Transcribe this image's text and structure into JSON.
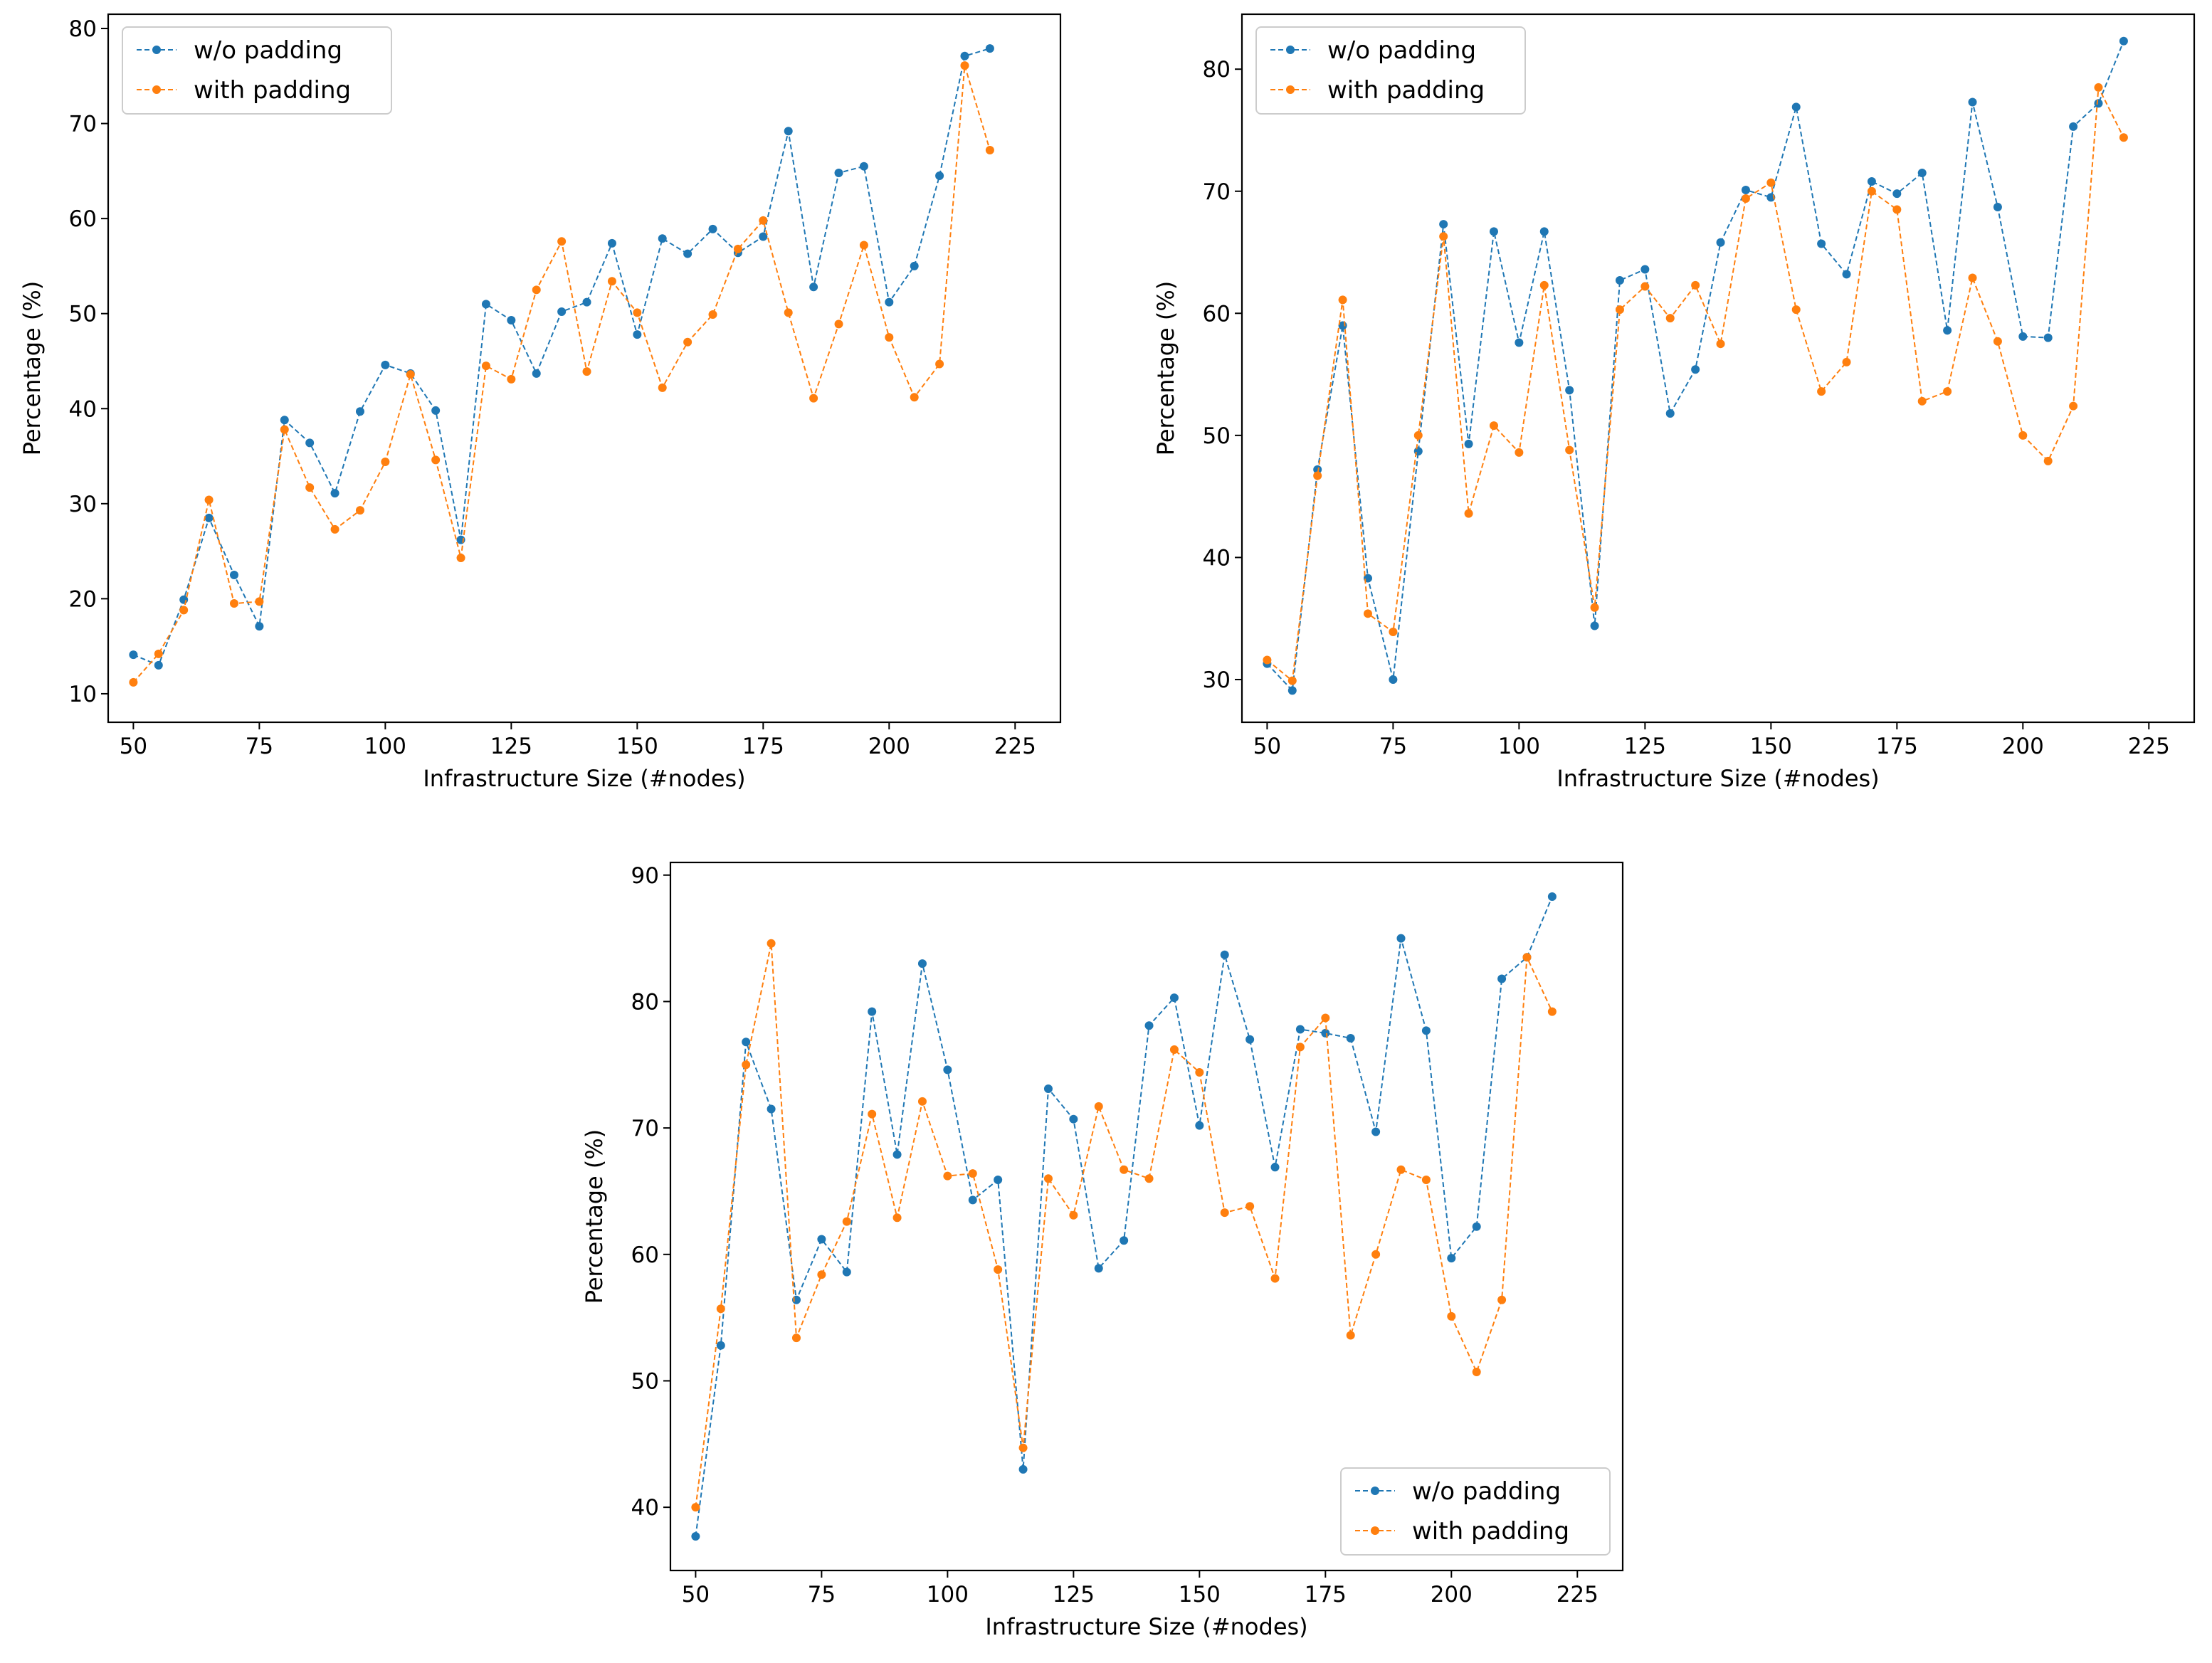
{
  "colors": {
    "series_blue": "#1f77b4",
    "series_orange": "#ff7f0e"
  },
  "chart_data": [
    {
      "type": "line",
      "xlabel": "Infrastructure Size (#nodes)",
      "ylabel": "Percentage (%)",
      "xlim": [
        45,
        234
      ],
      "ylim": [
        7,
        81.5
      ],
      "xticks": [
        50,
        75,
        100,
        125,
        150,
        175,
        200,
        225
      ],
      "yticks": [
        10,
        20,
        30,
        40,
        50,
        60,
        70,
        80
      ],
      "legend_position": "upper-left",
      "x": [
        50,
        55,
        60,
        65,
        70,
        75,
        80,
        85,
        90,
        95,
        100,
        105,
        110,
        115,
        120,
        125,
        130,
        135,
        140,
        145,
        150,
        155,
        160,
        165,
        170,
        175,
        180,
        185,
        190,
        195,
        200,
        205,
        210,
        215,
        220
      ],
      "series": [
        {
          "name": "w/o padding",
          "color": "#1f77b4",
          "values": [
            14.1,
            13.0,
            19.9,
            28.5,
            22.5,
            17.1,
            38.8,
            36.4,
            31.1,
            39.7,
            44.6,
            43.7,
            39.8,
            26.2,
            51.0,
            49.3,
            43.7,
            50.2,
            51.2,
            57.4,
            47.8,
            57.9,
            56.3,
            58.9,
            56.4,
            58.1,
            69.2,
            52.8,
            64.8,
            65.5,
            51.2,
            55.0,
            64.5,
            77.1,
            77.9
          ]
        },
        {
          "name": "with padding",
          "color": "#ff7f0e",
          "values": [
            11.2,
            14.2,
            18.8,
            30.4,
            19.5,
            19.7,
            37.8,
            31.7,
            27.3,
            29.3,
            34.4,
            43.6,
            34.6,
            24.3,
            44.5,
            43.1,
            52.5,
            57.6,
            43.9,
            53.4,
            50.1,
            42.2,
            47.0,
            49.9,
            56.8,
            59.8,
            50.1,
            41.1,
            48.9,
            57.2,
            47.5,
            41.2,
            44.7,
            76.1,
            67.2
          ]
        }
      ]
    },
    {
      "type": "line",
      "xlabel": "Infrastructure Size (#nodes)",
      "ylabel": "Percentage (%)",
      "xlim": [
        45,
        234
      ],
      "ylim": [
        26.5,
        84.5
      ],
      "xticks": [
        50,
        75,
        100,
        125,
        150,
        175,
        200,
        225
      ],
      "yticks": [
        30,
        40,
        50,
        60,
        70,
        80
      ],
      "legend_position": "upper-left",
      "x": [
        50,
        55,
        60,
        65,
        70,
        75,
        80,
        85,
        90,
        95,
        100,
        105,
        110,
        115,
        120,
        125,
        130,
        135,
        140,
        145,
        150,
        155,
        160,
        165,
        170,
        175,
        180,
        185,
        190,
        195,
        200,
        205,
        210,
        215,
        220
      ],
      "series": [
        {
          "name": "w/o padding",
          "color": "#1f77b4",
          "values": [
            31.3,
            29.1,
            47.2,
            59.0,
            38.3,
            30.0,
            48.7,
            67.3,
            49.3,
            66.7,
            57.6,
            66.7,
            53.7,
            34.4,
            62.7,
            63.6,
            51.8,
            55.4,
            65.8,
            70.1,
            69.5,
            76.9,
            65.7,
            63.2,
            70.8,
            69.8,
            71.5,
            58.6,
            77.3,
            68.7,
            58.1,
            58.0,
            75.3,
            77.2,
            82.3
          ]
        },
        {
          "name": "with padding",
          "color": "#ff7f0e",
          "values": [
            31.6,
            29.9,
            46.7,
            61.1,
            35.4,
            33.9,
            50.0,
            66.3,
            43.6,
            50.8,
            48.6,
            62.3,
            48.8,
            35.9,
            60.3,
            62.2,
            59.6,
            62.3,
            57.5,
            69.4,
            70.7,
            60.3,
            53.6,
            56.0,
            70.0,
            68.5,
            52.8,
            53.6,
            62.9,
            57.7,
            50.0,
            47.9,
            52.4,
            78.5,
            74.4
          ]
        }
      ]
    },
    {
      "type": "line",
      "xlabel": "Infrastructure Size (#nodes)",
      "ylabel": "Percentage (%)",
      "xlim": [
        45,
        234
      ],
      "ylim": [
        35,
        91
      ],
      "xticks": [
        50,
        75,
        100,
        125,
        150,
        175,
        200,
        225
      ],
      "yticks": [
        40,
        50,
        60,
        70,
        80,
        90
      ],
      "legend_position": "lower-right",
      "x": [
        50,
        55,
        60,
        65,
        70,
        75,
        80,
        85,
        90,
        95,
        100,
        105,
        110,
        115,
        120,
        125,
        130,
        135,
        140,
        145,
        150,
        155,
        160,
        165,
        170,
        175,
        180,
        185,
        190,
        195,
        200,
        205,
        210,
        215,
        220
      ],
      "series": [
        {
          "name": "w/o padding",
          "color": "#1f77b4",
          "values": [
            37.7,
            52.8,
            76.8,
            71.5,
            56.4,
            61.2,
            58.6,
            79.2,
            67.9,
            83.0,
            74.6,
            64.3,
            65.9,
            43.0,
            73.1,
            70.7,
            58.9,
            61.1,
            78.1,
            80.3,
            70.2,
            83.7,
            77.0,
            66.9,
            77.8,
            77.5,
            77.1,
            69.7,
            85.0,
            77.7,
            59.7,
            62.2,
            81.8,
            83.5,
            88.3
          ]
        },
        {
          "name": "with padding",
          "color": "#ff7f0e",
          "values": [
            40.0,
            55.7,
            75.0,
            84.6,
            53.4,
            58.4,
            62.6,
            71.1,
            62.9,
            72.1,
            66.2,
            66.4,
            58.8,
            44.7,
            66.0,
            63.1,
            71.7,
            66.7,
            66.0,
            76.2,
            74.4,
            63.3,
            63.8,
            58.1,
            76.4,
            78.7,
            53.6,
            60.0,
            66.7,
            65.9,
            55.1,
            50.7,
            56.4,
            83.5,
            79.2
          ]
        }
      ]
    }
  ]
}
